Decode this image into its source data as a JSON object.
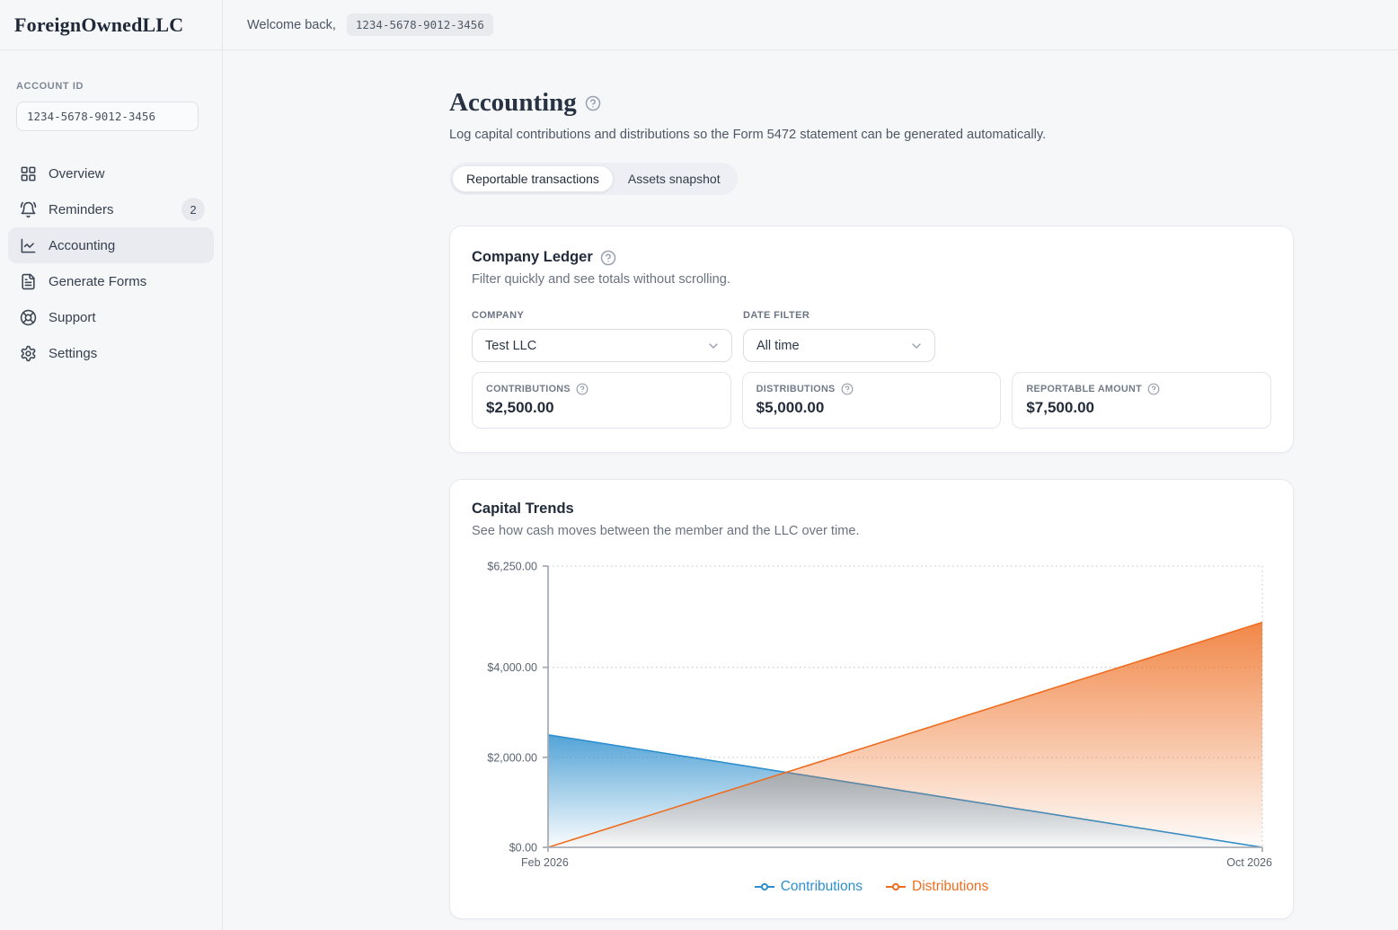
{
  "brand": {
    "name": "ForeignOwnedLLC"
  },
  "topbar": {
    "welcome_text": "Welcome back,",
    "account_badge": "1234-5678-9012-3456"
  },
  "sidebar": {
    "account_id_label": "ACCOUNT ID",
    "account_id_value": "1234-5678-9012-3456",
    "items": [
      {
        "label": "Overview",
        "icon": "grid-icon",
        "active": false
      },
      {
        "label": "Reminders",
        "icon": "bell-icon",
        "badge": "2",
        "active": false
      },
      {
        "label": "Accounting",
        "icon": "line-chart-icon",
        "active": true
      },
      {
        "label": "Generate Forms",
        "icon": "file-text-icon",
        "active": false
      },
      {
        "label": "Support",
        "icon": "life-buoy-icon",
        "active": false
      },
      {
        "label": "Settings",
        "icon": "gear-icon",
        "active": false
      }
    ]
  },
  "page": {
    "title": "Accounting",
    "subtitle": "Log capital contributions and distributions so the Form 5472 statement can be generated automatically.",
    "tabs": [
      {
        "label": "Reportable transactions",
        "active": true
      },
      {
        "label": "Assets snapshot",
        "active": false
      }
    ]
  },
  "ledger": {
    "title": "Company Ledger",
    "subtitle": "Filter quickly and see totals without scrolling.",
    "company_label": "COMPANY",
    "company_value": "Test LLC",
    "date_filter_label": "DATE FILTER",
    "date_filter_value": "All time",
    "stats": [
      {
        "label": "CONTRIBUTIONS",
        "value": "$2,500.00"
      },
      {
        "label": "DISTRIBUTIONS",
        "value": "$5,000.00"
      },
      {
        "label": "REPORTABLE AMOUNT",
        "value": "$7,500.00"
      }
    ]
  },
  "trends": {
    "title": "Capital Trends",
    "subtitle": "See how cash moves between the member and the LLC over time."
  },
  "chart_data": {
    "type": "area",
    "x": [
      "Feb 2026",
      "Oct 2026"
    ],
    "series": [
      {
        "name": "Contributions",
        "values": [
          2500,
          0
        ],
        "color": "#2d8fce"
      },
      {
        "name": "Distributions",
        "values": [
          0,
          5000
        ],
        "color": "#ee6d20"
      }
    ],
    "ylim": [
      0,
      6250
    ],
    "yticks": [
      0,
      2000,
      4000,
      6250
    ],
    "ytick_labels": [
      "$0.00",
      "$2,000.00",
      "$4,000.00",
      "$6,250.00"
    ],
    "xlabels": [
      "Feb 2026",
      "Oct 2026"
    ],
    "grid": "dotted-horizontal",
    "legend_position": "bottom"
  }
}
